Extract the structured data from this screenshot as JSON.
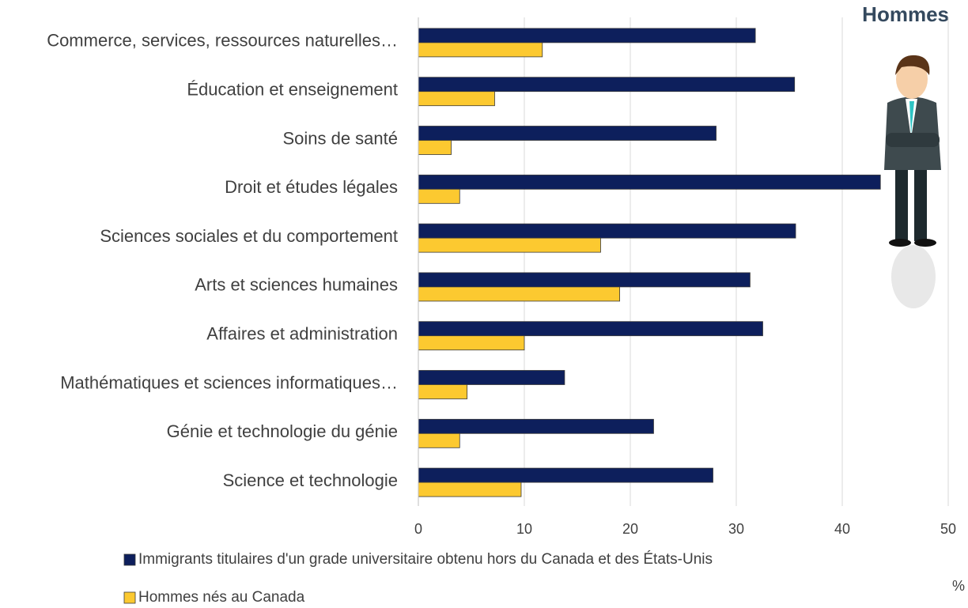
{
  "chart_data": {
    "type": "hbar",
    "title": "Hommes",
    "xlabel": "%",
    "categories": [
      "Commerce, services, ressources naturelles…",
      "Éducation et enseignement",
      "Soins de santé",
      "Droit et études légales",
      "Sciences sociales et du comportement",
      "Arts et sciences humaines",
      "Affaires et administration",
      "Mathématiques et sciences informatiques…",
      "Génie et technologie du génie",
      "Science et technologie"
    ],
    "series": [
      {
        "name": "Immigrants titulaires d'un grade universitaire obtenu hors du Canada et des États-Unis",
        "color": "#0d1f5c",
        "values": [
          31.8,
          35.5,
          28.1,
          43.6,
          35.6,
          31.3,
          32.5,
          13.8,
          22.2,
          27.8
        ]
      },
      {
        "name": "Hommes nés au Canada",
        "color": "#fcc930",
        "values": [
          11.7,
          7.2,
          3.1,
          3.9,
          17.2,
          19.0,
          10.0,
          4.6,
          3.9,
          9.7
        ]
      }
    ],
    "xlim": [
      0,
      50
    ],
    "xticks": [
      0,
      10,
      20,
      30,
      40,
      50
    ],
    "grid": true
  }
}
